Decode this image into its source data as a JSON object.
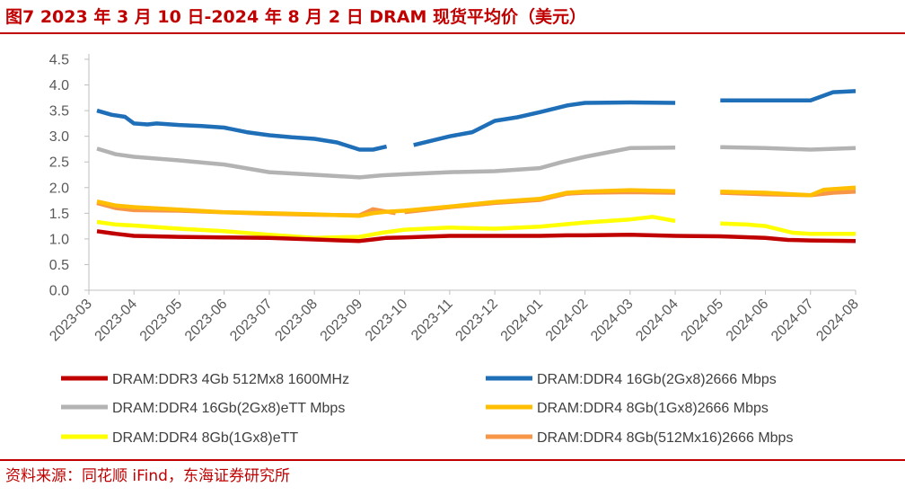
{
  "figure": {
    "title": "图7  2023 年 3 月 10 日-2024 年 8 月 2 日 DRAM 现货平均价（美元）",
    "source": "资料来源：同花顺 iFind，东海证券研究所"
  },
  "chart_data": {
    "type": "line",
    "title": "",
    "xlabel": "",
    "ylabel": "",
    "ylim": [
      0.0,
      4.5
    ],
    "yticks": [
      "0.0",
      "0.5",
      "1.0",
      "1.5",
      "2.0",
      "2.5",
      "3.0",
      "3.5",
      "4.0",
      "4.5"
    ],
    "xticks": [
      "2023-03",
      "2023-04",
      "2023-05",
      "2023-06",
      "2023-07",
      "2023-08",
      "2023-09",
      "2023-10",
      "2023-11",
      "2023-12",
      "2024-01",
      "2024-02",
      "2024-03",
      "2024-04",
      "2024-05",
      "2024-06",
      "2024-07",
      "2024-08"
    ],
    "grid": false,
    "legend_position": "bottom",
    "series": [
      {
        "name": "DRAM:DDR3 4Gb 512Mx8 1600MHz",
        "color": "#c00000",
        "points": [
          [
            0.18,
            1.15
          ],
          [
            0.6,
            1.1
          ],
          [
            1,
            1.06
          ],
          [
            2,
            1.04
          ],
          [
            3,
            1.03
          ],
          [
            4,
            1.02
          ],
          [
            5,
            0.99
          ],
          [
            5.6,
            0.97
          ],
          [
            6,
            0.96
          ],
          [
            6.3,
            0.99
          ],
          [
            6.6,
            1.02
          ],
          [
            7,
            1.03
          ],
          [
            8,
            1.06
          ],
          [
            9,
            1.06
          ],
          [
            10,
            1.06
          ],
          [
            10.6,
            1.07
          ],
          [
            11,
            1.07
          ],
          [
            12,
            1.08
          ],
          [
            13,
            1.06
          ],
          [
            14,
            1.05
          ],
          [
            15,
            1.02
          ],
          [
            15.5,
            0.98
          ],
          [
            16,
            0.97
          ],
          [
            17,
            0.96
          ]
        ]
      },
      {
        "name": "DRAM:DDR4 16Gb(2Gx8)2666 Mbps",
        "color": "#1f6fb8",
        "points": [
          [
            0.18,
            3.5
          ],
          [
            0.5,
            3.42
          ],
          [
            0.8,
            3.38
          ],
          [
            1,
            3.25
          ],
          [
            1.3,
            3.23
          ],
          [
            1.5,
            3.25
          ],
          [
            2,
            3.22
          ],
          [
            2.5,
            3.2
          ],
          [
            3,
            3.17
          ],
          [
            3.5,
            3.08
          ],
          [
            4,
            3.02
          ],
          [
            4.5,
            2.98
          ],
          [
            5,
            2.95
          ],
          [
            5.5,
            2.88
          ],
          [
            6,
            2.74
          ],
          [
            6.3,
            2.74
          ],
          [
            6.6,
            2.8
          ],
          [
            7.2,
            2.83
          ],
          [
            8,
            3.0
          ],
          [
            8.5,
            3.08
          ],
          [
            9,
            3.3
          ],
          [
            9.5,
            3.37
          ],
          [
            10,
            3.47
          ],
          [
            10.6,
            3.6
          ],
          [
            11,
            3.65
          ],
          [
            12,
            3.66
          ],
          [
            13,
            3.65
          ],
          [
            14,
            3.7
          ],
          [
            15,
            3.7
          ],
          [
            16,
            3.7
          ],
          [
            16.5,
            3.86
          ],
          [
            17,
            3.88
          ]
        ],
        "gaps_before": [
          7,
          14
        ]
      },
      {
        "name": "DRAM:DDR4 16Gb(2Gx8)eTT Mbps",
        "color": "#b3b3b3",
        "points": [
          [
            0.18,
            2.76
          ],
          [
            0.6,
            2.65
          ],
          [
            1,
            2.6
          ],
          [
            2,
            2.53
          ],
          [
            3,
            2.45
          ],
          [
            4,
            2.3
          ],
          [
            5,
            2.25
          ],
          [
            6,
            2.2
          ],
          [
            6.5,
            2.24
          ],
          [
            7,
            2.26
          ],
          [
            8,
            2.3
          ],
          [
            9,
            2.32
          ],
          [
            10,
            2.38
          ],
          [
            10.5,
            2.5
          ],
          [
            11,
            2.6
          ],
          [
            12,
            2.77
          ],
          [
            13,
            2.78
          ],
          [
            14,
            2.79
          ],
          [
            15,
            2.77
          ],
          [
            16,
            2.74
          ],
          [
            17,
            2.77
          ]
        ],
        "gaps_before": [
          14
        ]
      },
      {
        "name": "DRAM:DDR4 8Gb(1Gx8)2666 Mbps",
        "color": "#ffbf00",
        "points": [
          [
            0.18,
            1.73
          ],
          [
            0.6,
            1.65
          ],
          [
            1,
            1.62
          ],
          [
            2,
            1.57
          ],
          [
            3,
            1.52
          ],
          [
            4,
            1.5
          ],
          [
            5,
            1.48
          ],
          [
            6,
            1.45
          ],
          [
            6.3,
            1.5
          ],
          [
            6.6,
            1.53
          ],
          [
            7,
            1.55
          ],
          [
            8,
            1.63
          ],
          [
            9,
            1.72
          ],
          [
            10,
            1.78
          ],
          [
            10.6,
            1.9
          ],
          [
            11,
            1.92
          ],
          [
            12,
            1.95
          ],
          [
            13,
            1.93
          ],
          [
            14,
            1.92
          ],
          [
            15,
            1.9
          ],
          [
            16,
            1.85
          ],
          [
            16.3,
            1.96
          ],
          [
            17,
            2.0
          ]
        ],
        "gaps_before": [
          14
        ]
      },
      {
        "name": "DRAM:DDR4 8Gb(1Gx8)eTT",
        "color": "#ffff00",
        "points": [
          [
            0.18,
            1.33
          ],
          [
            0.6,
            1.28
          ],
          [
            1,
            1.26
          ],
          [
            2,
            1.2
          ],
          [
            3,
            1.15
          ],
          [
            4,
            1.08
          ],
          [
            5,
            1.02
          ],
          [
            6,
            1.04
          ],
          [
            6.5,
            1.12
          ],
          [
            7,
            1.18
          ],
          [
            8,
            1.22
          ],
          [
            9,
            1.2
          ],
          [
            10,
            1.24
          ],
          [
            11,
            1.32
          ],
          [
            12,
            1.38
          ],
          [
            12.5,
            1.43
          ],
          [
            13,
            1.35
          ],
          [
            14,
            1.3
          ],
          [
            14.6,
            1.28
          ],
          [
            15,
            1.25
          ],
          [
            15.6,
            1.12
          ],
          [
            16,
            1.1
          ],
          [
            17,
            1.1
          ]
        ],
        "gaps_before": [
          14
        ]
      },
      {
        "name": "DRAM:DDR4 8Gb(512Mx16)2666 Mbps",
        "color": "#f79646",
        "points": [
          [
            0.18,
            1.7
          ],
          [
            0.6,
            1.6
          ],
          [
            1,
            1.56
          ],
          [
            2,
            1.55
          ],
          [
            3,
            1.52
          ],
          [
            4,
            1.49
          ],
          [
            5,
            1.47
          ],
          [
            6,
            1.46
          ],
          [
            6.3,
            1.58
          ],
          [
            6.8,
            1.5
          ],
          [
            7,
            1.52
          ],
          [
            8,
            1.62
          ],
          [
            9,
            1.7
          ],
          [
            10,
            1.76
          ],
          [
            10.6,
            1.88
          ],
          [
            11,
            1.9
          ],
          [
            12,
            1.91
          ],
          [
            13,
            1.9
          ],
          [
            14,
            1.9
          ],
          [
            15,
            1.87
          ],
          [
            16,
            1.85
          ],
          [
            16.5,
            1.9
          ],
          [
            17,
            1.92
          ]
        ],
        "gaps_before": [
          7,
          14
        ]
      }
    ]
  }
}
